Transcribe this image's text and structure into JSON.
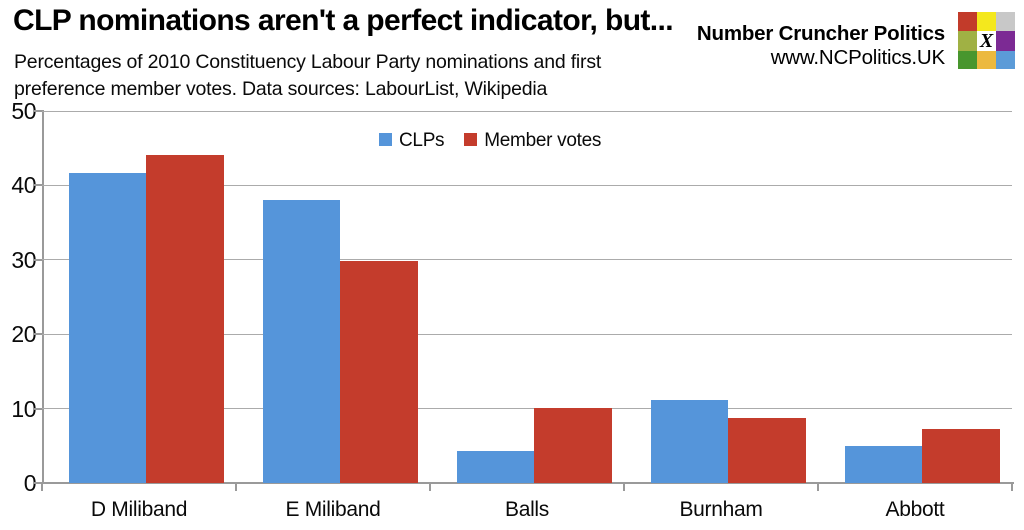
{
  "header": {
    "title": "CLP nominations aren't a perfect indicator, but...",
    "subtitle_line1": "Percentages of 2010 Constituency Labour Party nominations and first",
    "subtitle_line2": "preference member votes. Data sources: LabourList, Wikipedia"
  },
  "brand": {
    "name": "Number Cruncher Politics",
    "url": "www.NCPolitics.UK",
    "logo_x": "X",
    "logo_cells": [
      "#c23b2a",
      "#f4e81d",
      "#c8c8c8",
      "#a0b144",
      "#ffffff",
      "#7c2a94",
      "#48962e",
      "#ecb93f",
      "#5b9bd8"
    ]
  },
  "chart_data": {
    "type": "bar",
    "title": "CLP nominations aren't a perfect indicator, but...",
    "categories": [
      "D Miliband",
      "E Miliband",
      "Balls",
      "Burnham",
      "Abbott"
    ],
    "series": [
      {
        "name": "CLPs",
        "color": "#5595da",
        "values": [
          41.6,
          38.0,
          4.3,
          11.1,
          5.0
        ]
      },
      {
        "name": "Member votes",
        "color": "#c43c2c",
        "values": [
          44.1,
          29.9,
          10.1,
          8.7,
          7.3
        ]
      }
    ],
    "ylim": [
      0,
      50
    ],
    "yticks": [
      0,
      10,
      20,
      30,
      40,
      50
    ],
    "xlabel": "",
    "ylabel": "",
    "grid": "horizontal",
    "legend_position": "top-inside",
    "axis_color": "#9a9a9a",
    "gridline_color": "#ababab"
  }
}
